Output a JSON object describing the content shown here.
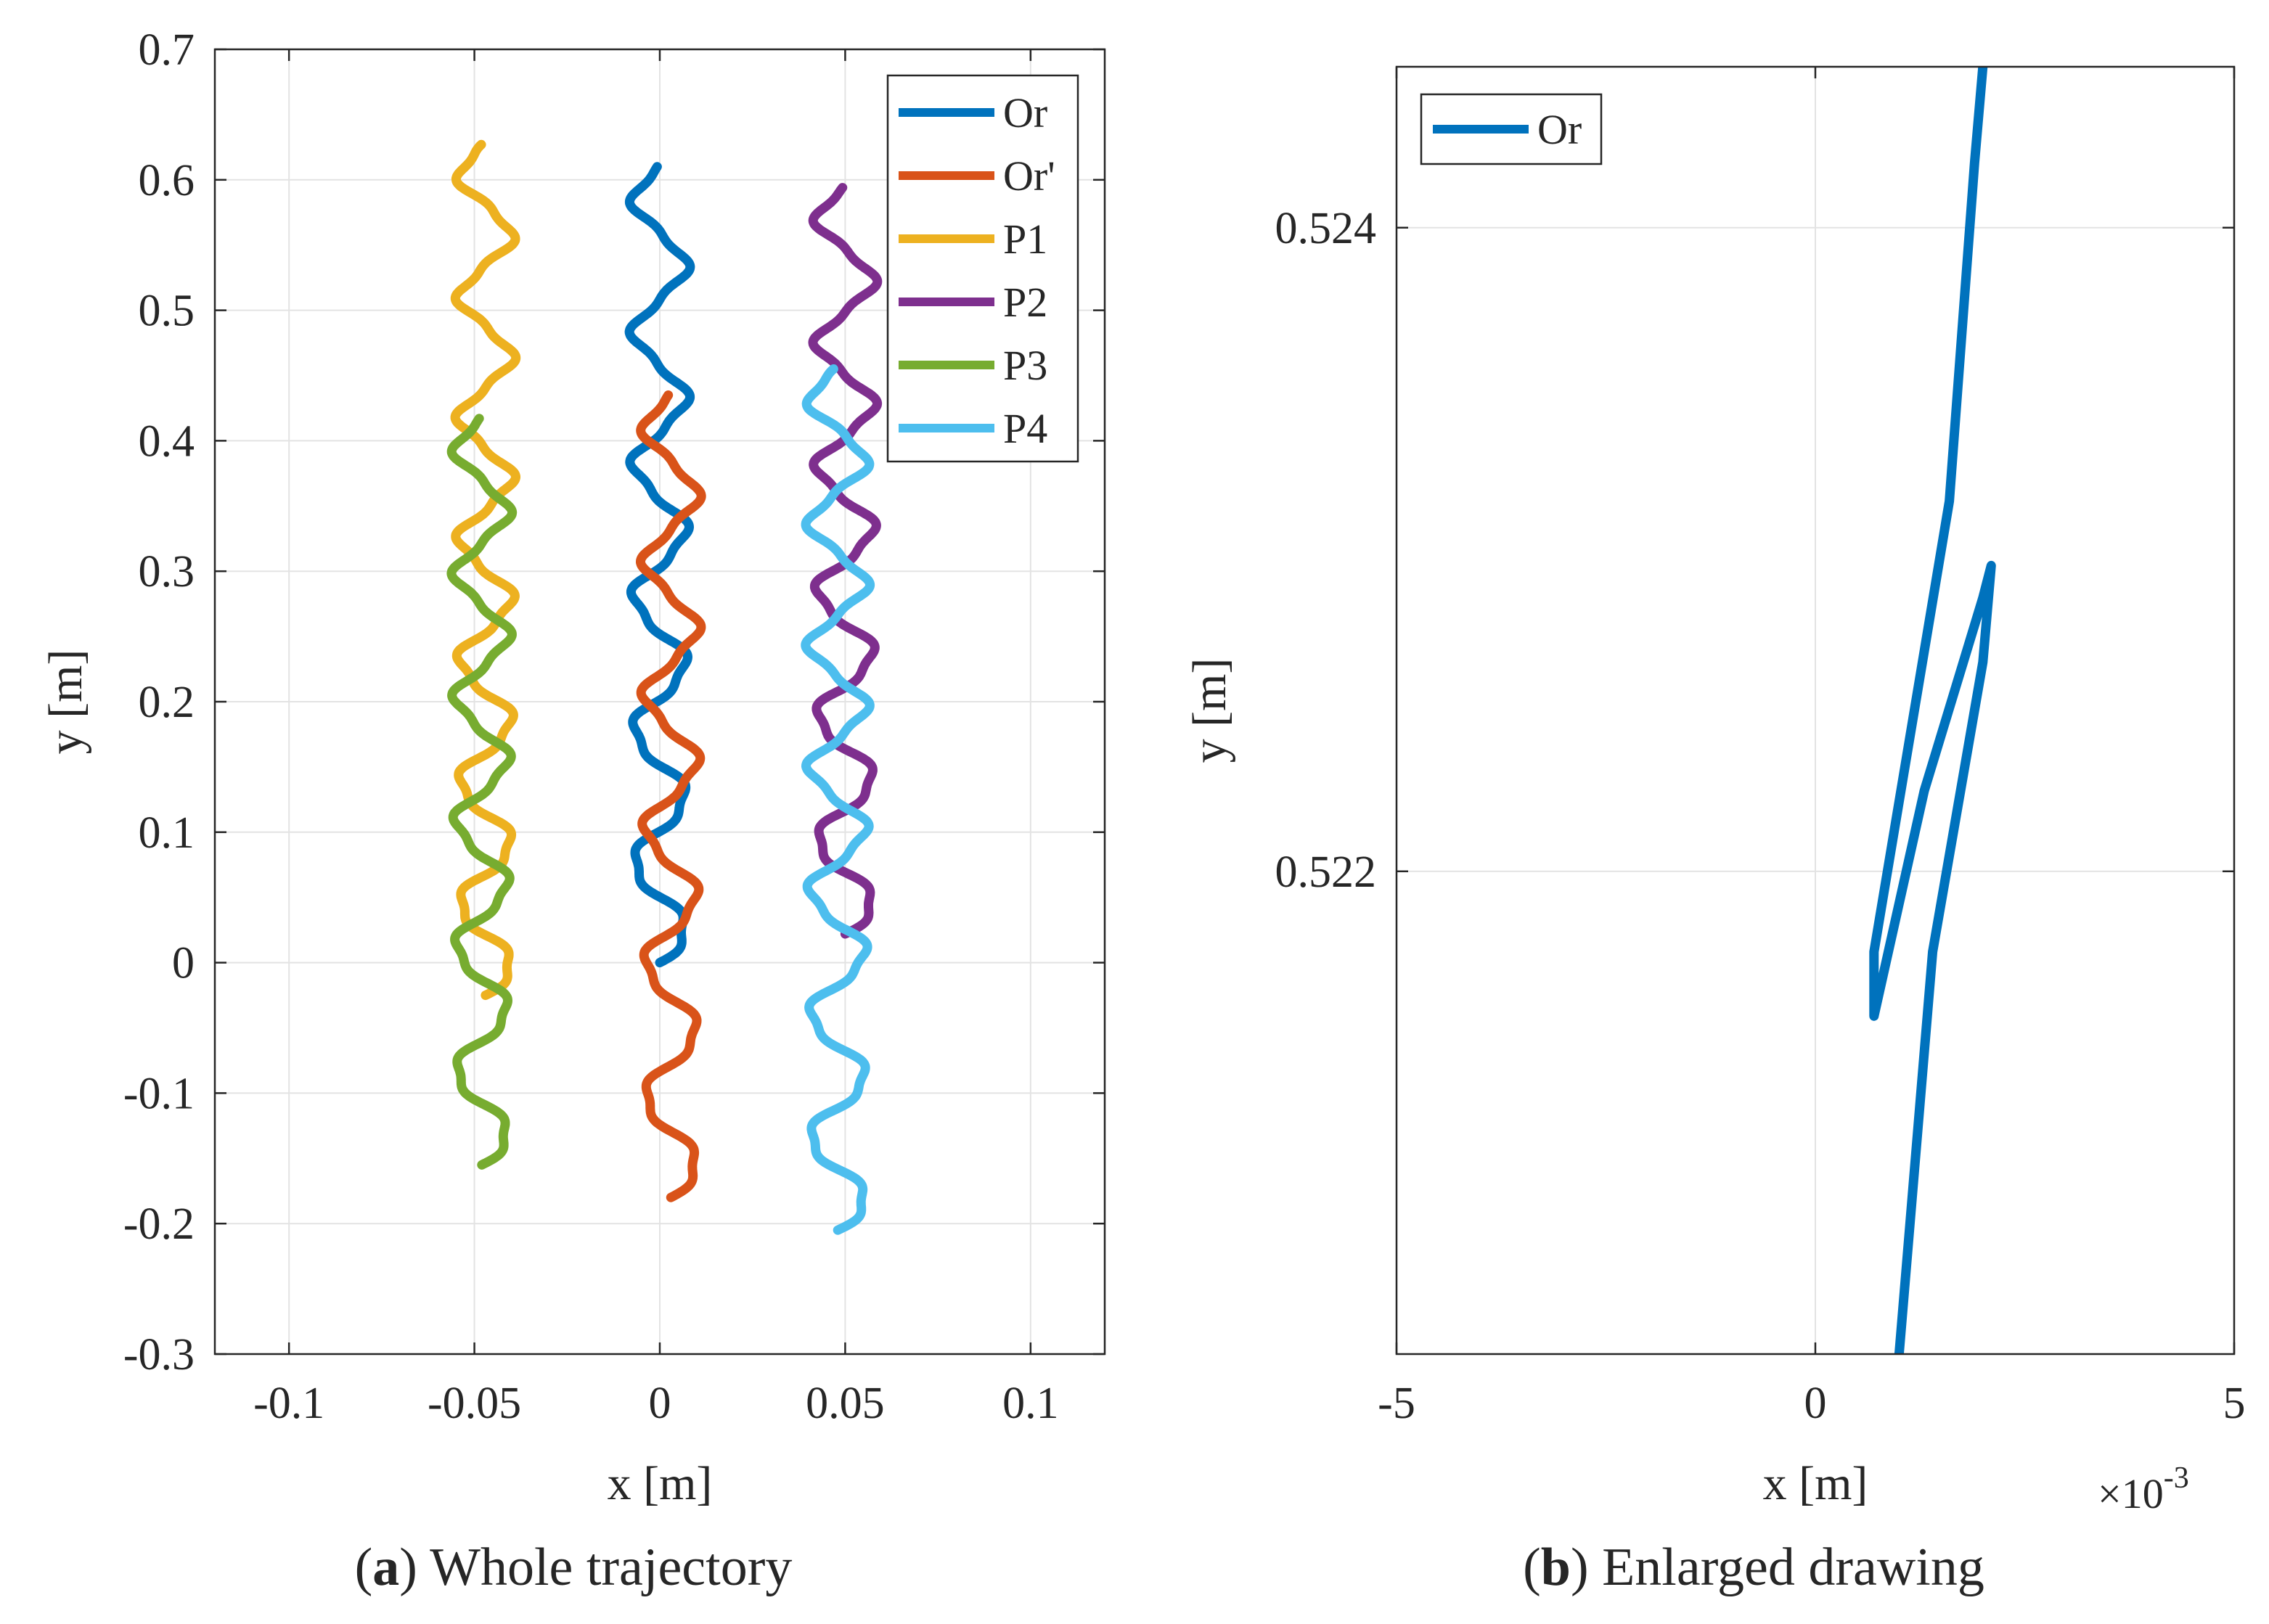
{
  "chart_data": [
    {
      "type": "line",
      "caption_letter": "a",
      "caption_text": " Whole trajectory",
      "xlabel": "x [m]",
      "ylabel": "y [m]",
      "xlim": [
        -0.12,
        0.12
      ],
      "ylim": [
        -0.3,
        0.7
      ],
      "xticks": [
        -0.1,
        -0.05,
        0,
        0.05,
        0.1
      ],
      "xtick_labels": [
        "-0.1",
        "-0.05",
        "0",
        "0.05",
        "0.1"
      ],
      "yticks": [
        -0.3,
        -0.2,
        -0.1,
        0,
        0.1,
        0.2,
        0.3,
        0.4,
        0.5,
        0.6,
        0.7
      ],
      "ytick_labels": [
        "-0.3",
        "-0.2",
        "-0.1",
        "0",
        "0.1",
        "0.2",
        "0.3",
        "0.4",
        "0.5",
        "0.6",
        "0.7"
      ],
      "grid": true,
      "legend": "top-right",
      "series": [
        {
          "name": "Or",
          "color": "#0072BD",
          "center_x": 0.0,
          "y_start": 0.0,
          "y_end": 0.61,
          "amplitude": 0.007,
          "cycles": 6,
          "phase": 0
        },
        {
          "name": "Or'",
          "color": "#D95319",
          "center_x": 0.003,
          "y_start": -0.18,
          "y_end": 0.435,
          "amplitude": 0.007,
          "cycles": 6,
          "phase": 0
        },
        {
          "name": "P1",
          "color": "#EDB120",
          "center_x": -0.047,
          "y_start": -0.025,
          "y_end": 0.627,
          "amplitude": 0.007,
          "cycles": 7,
          "phase": 0
        },
        {
          "name": "P2",
          "color": "#7E2F8E",
          "center_x": 0.05,
          "y_start": 0.022,
          "y_end": 0.594,
          "amplitude": 0.0075,
          "cycles": 6,
          "phase": 0
        },
        {
          "name": "P3",
          "color": "#77AC30",
          "center_x": -0.048,
          "y_start": -0.155,
          "y_end": 0.417,
          "amplitude": 0.007,
          "cycles": 6,
          "phase": 0
        },
        {
          "name": "P4",
          "color": "#4DBEEE",
          "center_x": 0.048,
          "y_start": -0.205,
          "y_end": 0.455,
          "amplitude": 0.0075,
          "cycles": 7,
          "phase": 0
        }
      ]
    },
    {
      "type": "line",
      "caption_letter": "b",
      "caption_text": " Enlarged drawing",
      "xlabel": "x [m]",
      "ylabel": "y [m]",
      "x_multiplier_base": "×10",
      "x_multiplier_exp": "-3",
      "xlim": [
        -5,
        5
      ],
      "ylim": [
        0.5205,
        0.5245
      ],
      "xticks": [
        -5,
        0,
        5
      ],
      "xtick_labels": [
        "-5",
        "0",
        "5"
      ],
      "yticks": [
        0.522,
        0.524
      ],
      "ytick_labels": [
        "0.522",
        "0.524"
      ],
      "grid": true,
      "legend": "top-left",
      "series": [
        {
          "name": "Or",
          "color": "#0072BD",
          "x": [
            1.0,
            1.4,
            2.0,
            2.1,
            2.0,
            1.3,
            0.7,
            0.7,
            1.6,
            1.9,
            2.0
          ],
          "y": [
            0.5205,
            0.52175,
            0.52265,
            0.52295,
            0.52285,
            0.52225,
            0.52155,
            0.52175,
            0.52315,
            0.5242,
            0.5245
          ]
        }
      ]
    }
  ]
}
